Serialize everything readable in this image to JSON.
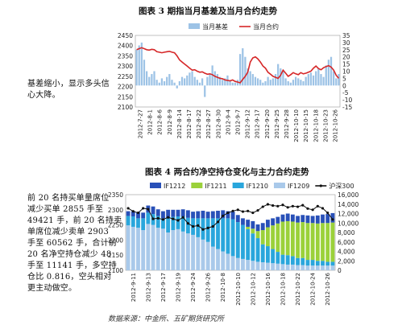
{
  "fig3_title": "图表 3 期指当月基差及当月合约走势",
  "fig4_title": "图表 4 两合约净空持仓变化与主力合约走势",
  "side_text_1": [
    "基差缩小，显示多头信",
    "心大降。"
  ],
  "side_text_2": [
    "前 20 名持买单量席位",
    "减少买单 2855 手至",
    "49421 手，前 20 名持卖",
    "单席位减少卖单 2903",
    "手至 60562 手，合计前",
    "20 名净空持仓减少 48",
    "手至 11141 手，多空持",
    "仓比 0.816，空头相对",
    "更主动做空。"
  ],
  "source": "数据来源：中金所、五矿期货研究所",
  "chart_data": [
    {
      "type": "bar",
      "title": "图表 3 期指当月基差及当月合约走势",
      "legend": [
        "当月基差",
        "当月合约"
      ],
      "legend_position": "top",
      "colors": {
        "basis": "#9dc3e6",
        "contract": "#d62728"
      },
      "y_left": {
        "min": 2100,
        "max": 2450,
        "ticks": [
          2100,
          2150,
          2200,
          2250,
          2300,
          2350,
          2400,
          2450
        ]
      },
      "y_right": {
        "min": -15,
        "max": 35,
        "ticks": [
          -15,
          -10,
          -5,
          0,
          5,
          10,
          15,
          20,
          25,
          30,
          35
        ]
      },
      "x_tick_labels": [
        "2012-7-27",
        "2012-8-1",
        "2012-8-6",
        "2012-8-9",
        "2012-8-14",
        "2012-8-17",
        "2012-8-22",
        "2012-8-27",
        "2012-8-30",
        "2012-9-4",
        "2012-9-7",
        "2012-9-12",
        "2012-9-17",
        "2012-9-20",
        "2012-9-25",
        "2012-9-28",
        "2012-10-10",
        "2012-10-15",
        "2012-10-18",
        "2012-10-23",
        "2012-10-26"
      ],
      "series": [
        {
          "name": "当月基差",
          "axis": "right",
          "kind": "bar",
          "values": [
            25,
            28,
            30,
            18,
            10,
            6,
            8,
            10,
            4,
            2,
            5,
            3,
            6,
            8,
            4,
            2,
            -2,
            3,
            6,
            5,
            7,
            9,
            10,
            6,
            4,
            2,
            5,
            -8,
            6,
            8,
            14,
            10,
            8,
            6,
            4,
            5,
            7,
            3,
            2,
            2,
            4,
            22,
            26,
            20,
            12,
            10,
            8,
            6,
            5,
            4,
            2,
            3,
            6,
            4,
            5,
            8,
            15,
            12,
            10,
            5,
            3,
            2,
            4,
            6,
            5,
            4,
            3,
            6,
            8,
            9,
            7,
            10,
            12,
            8,
            6,
            14,
            18,
            20,
            10,
            5,
            8
          ]
        },
        {
          "name": "当月合约",
          "axis": "left",
          "kind": "line",
          "values": [
            2380,
            2385,
            2390,
            2385,
            2380,
            2378,
            2382,
            2380,
            2370,
            2368,
            2365,
            2368,
            2370,
            2372,
            2368,
            2365,
            2350,
            2330,
            2320,
            2310,
            2300,
            2290,
            2280,
            2282,
            2275,
            2270,
            2272,
            2265,
            2260,
            2262,
            2258,
            2250,
            2245,
            2240,
            2238,
            2232,
            2230,
            2228,
            2232,
            2225,
            2222,
            2218,
            2235,
            2250,
            2270,
            2320,
            2340,
            2345,
            2335,
            2320,
            2300,
            2290,
            2270,
            2260,
            2250,
            2245,
            2240,
            2255,
            2280,
            2265,
            2250,
            2258,
            2268,
            2262,
            2258,
            2268,
            2262,
            2265,
            2270,
            2275,
            2290,
            2300,
            2288,
            2282,
            2292,
            2298,
            2302,
            2295,
            2280,
            2255,
            2240
          ]
        }
      ]
    },
    {
      "type": "bar",
      "title": "图表 4 两合约净空持仓变化与主力合约走势",
      "legend": [
        "IF1212",
        "IF1211",
        "IF1210",
        "IF1209",
        "沪深300"
      ],
      "legend_position": "top",
      "colors": {
        "IF1212": "#2850b8",
        "IF1211": "#9bd13a",
        "IF1210": "#29a6dc",
        "IF1209": "#a9c9ea",
        "沪深300": "#111111"
      },
      "y_left": {
        "min": 2100,
        "max": 2350,
        "ticks": [
          2100,
          2150,
          2200,
          2250,
          2300,
          2350
        ]
      },
      "y_right": {
        "min": 0,
        "max": 16000,
        "ticks": [
          0,
          2000,
          4000,
          6000,
          8000,
          10000,
          12000,
          14000,
          16000
        ]
      },
      "x_tick_labels": [
        "2012-9-11",
        "2012-9-13",
        "2012-9-17",
        "2012-9-19",
        "2012-9-24",
        "2012-9-26",
        "2012-10-8",
        "2012-10-10",
        "2012-10-12",
        "2012-10-16",
        "2012-10-18",
        "2012-10-22",
        "2012-10-24",
        "2012-10-26"
      ],
      "series": [
        {
          "name": "IF1209",
          "axis": "right",
          "kind": "stacked-bar",
          "values": [
            9500,
            9200,
            9000,
            8500,
            9800,
            9600,
            9000,
            8800,
            8000,
            8500,
            8700,
            8200,
            7800,
            7500,
            7000,
            6500,
            6000,
            5000,
            4500,
            4000,
            3500,
            3000,
            2600,
            2400,
            2200,
            2000,
            1800,
            1700,
            1600,
            1500,
            1400,
            1300,
            1200,
            1200,
            1100,
            1100,
            1000,
            1000,
            1000,
            1000,
            1000,
            1000
          ]
        },
        {
          "name": "IF1210",
          "axis": "right",
          "kind": "stacked-bar",
          "values": [
            2000,
            2200,
            2000,
            2500,
            2400,
            2300,
            2500,
            2200,
            3000,
            2800,
            2700,
            3200,
            3300,
            3500,
            4000,
            4500,
            5000,
            6000,
            6500,
            7000,
            7500,
            7800,
            7600,
            7200,
            6500,
            5800,
            5000,
            3800,
            3500,
            3000,
            2500,
            2000,
            2000,
            1800,
            1500,
            1500,
            1200,
            1200,
            1000,
            1000,
            800,
            800
          ]
        },
        {
          "name": "IF1211",
          "axis": "right",
          "kind": "stacked-bar",
          "values": [
            0,
            0,
            0,
            0,
            0,
            0,
            0,
            0,
            0,
            0,
            0,
            0,
            0,
            0,
            0,
            0,
            0,
            0,
            0,
            0,
            0,
            0,
            0,
            0,
            500,
            1000,
            1500,
            3000,
            4000,
            5000,
            6000,
            7000,
            7200,
            7300,
            7500,
            7600,
            7800,
            7800,
            7900,
            8000,
            8200,
            8300
          ]
        },
        {
          "name": "IF1212",
          "axis": "right",
          "kind": "stacked-bar",
          "values": [
            1000,
            1100,
            1300,
            1200,
            1500,
            1600,
            1400,
            1500,
            1800,
            1500,
            1400,
            1500,
            1600,
            1400,
            1500,
            1600,
            1400,
            1500,
            1600,
            1700,
            1500,
            1600,
            1500,
            1400,
            1500,
            1600,
            1400,
            1500,
            1600,
            1500,
            1400,
            1500,
            1600,
            1500,
            1400,
            1500,
            1600,
            1500,
            1700,
            1800,
            1900,
            2000
          ]
        },
        {
          "name": "沪深300",
          "axis": "left",
          "kind": "line-markers",
          "values": [
            2305,
            2295,
            2290,
            2305,
            2302,
            2270,
            2272,
            2268,
            2275,
            2270,
            2265,
            2275,
            2255,
            2245,
            2248,
            2235,
            2240,
            2245,
            2260,
            2280,
            2290,
            2296,
            2300,
            2294,
            2296,
            2290,
            2298,
            2310,
            2318,
            2314,
            2312,
            2316,
            2308,
            2312,
            2310,
            2315,
            2304,
            2300,
            2312,
            2305,
            2290,
            2268
          ]
        }
      ]
    }
  ]
}
